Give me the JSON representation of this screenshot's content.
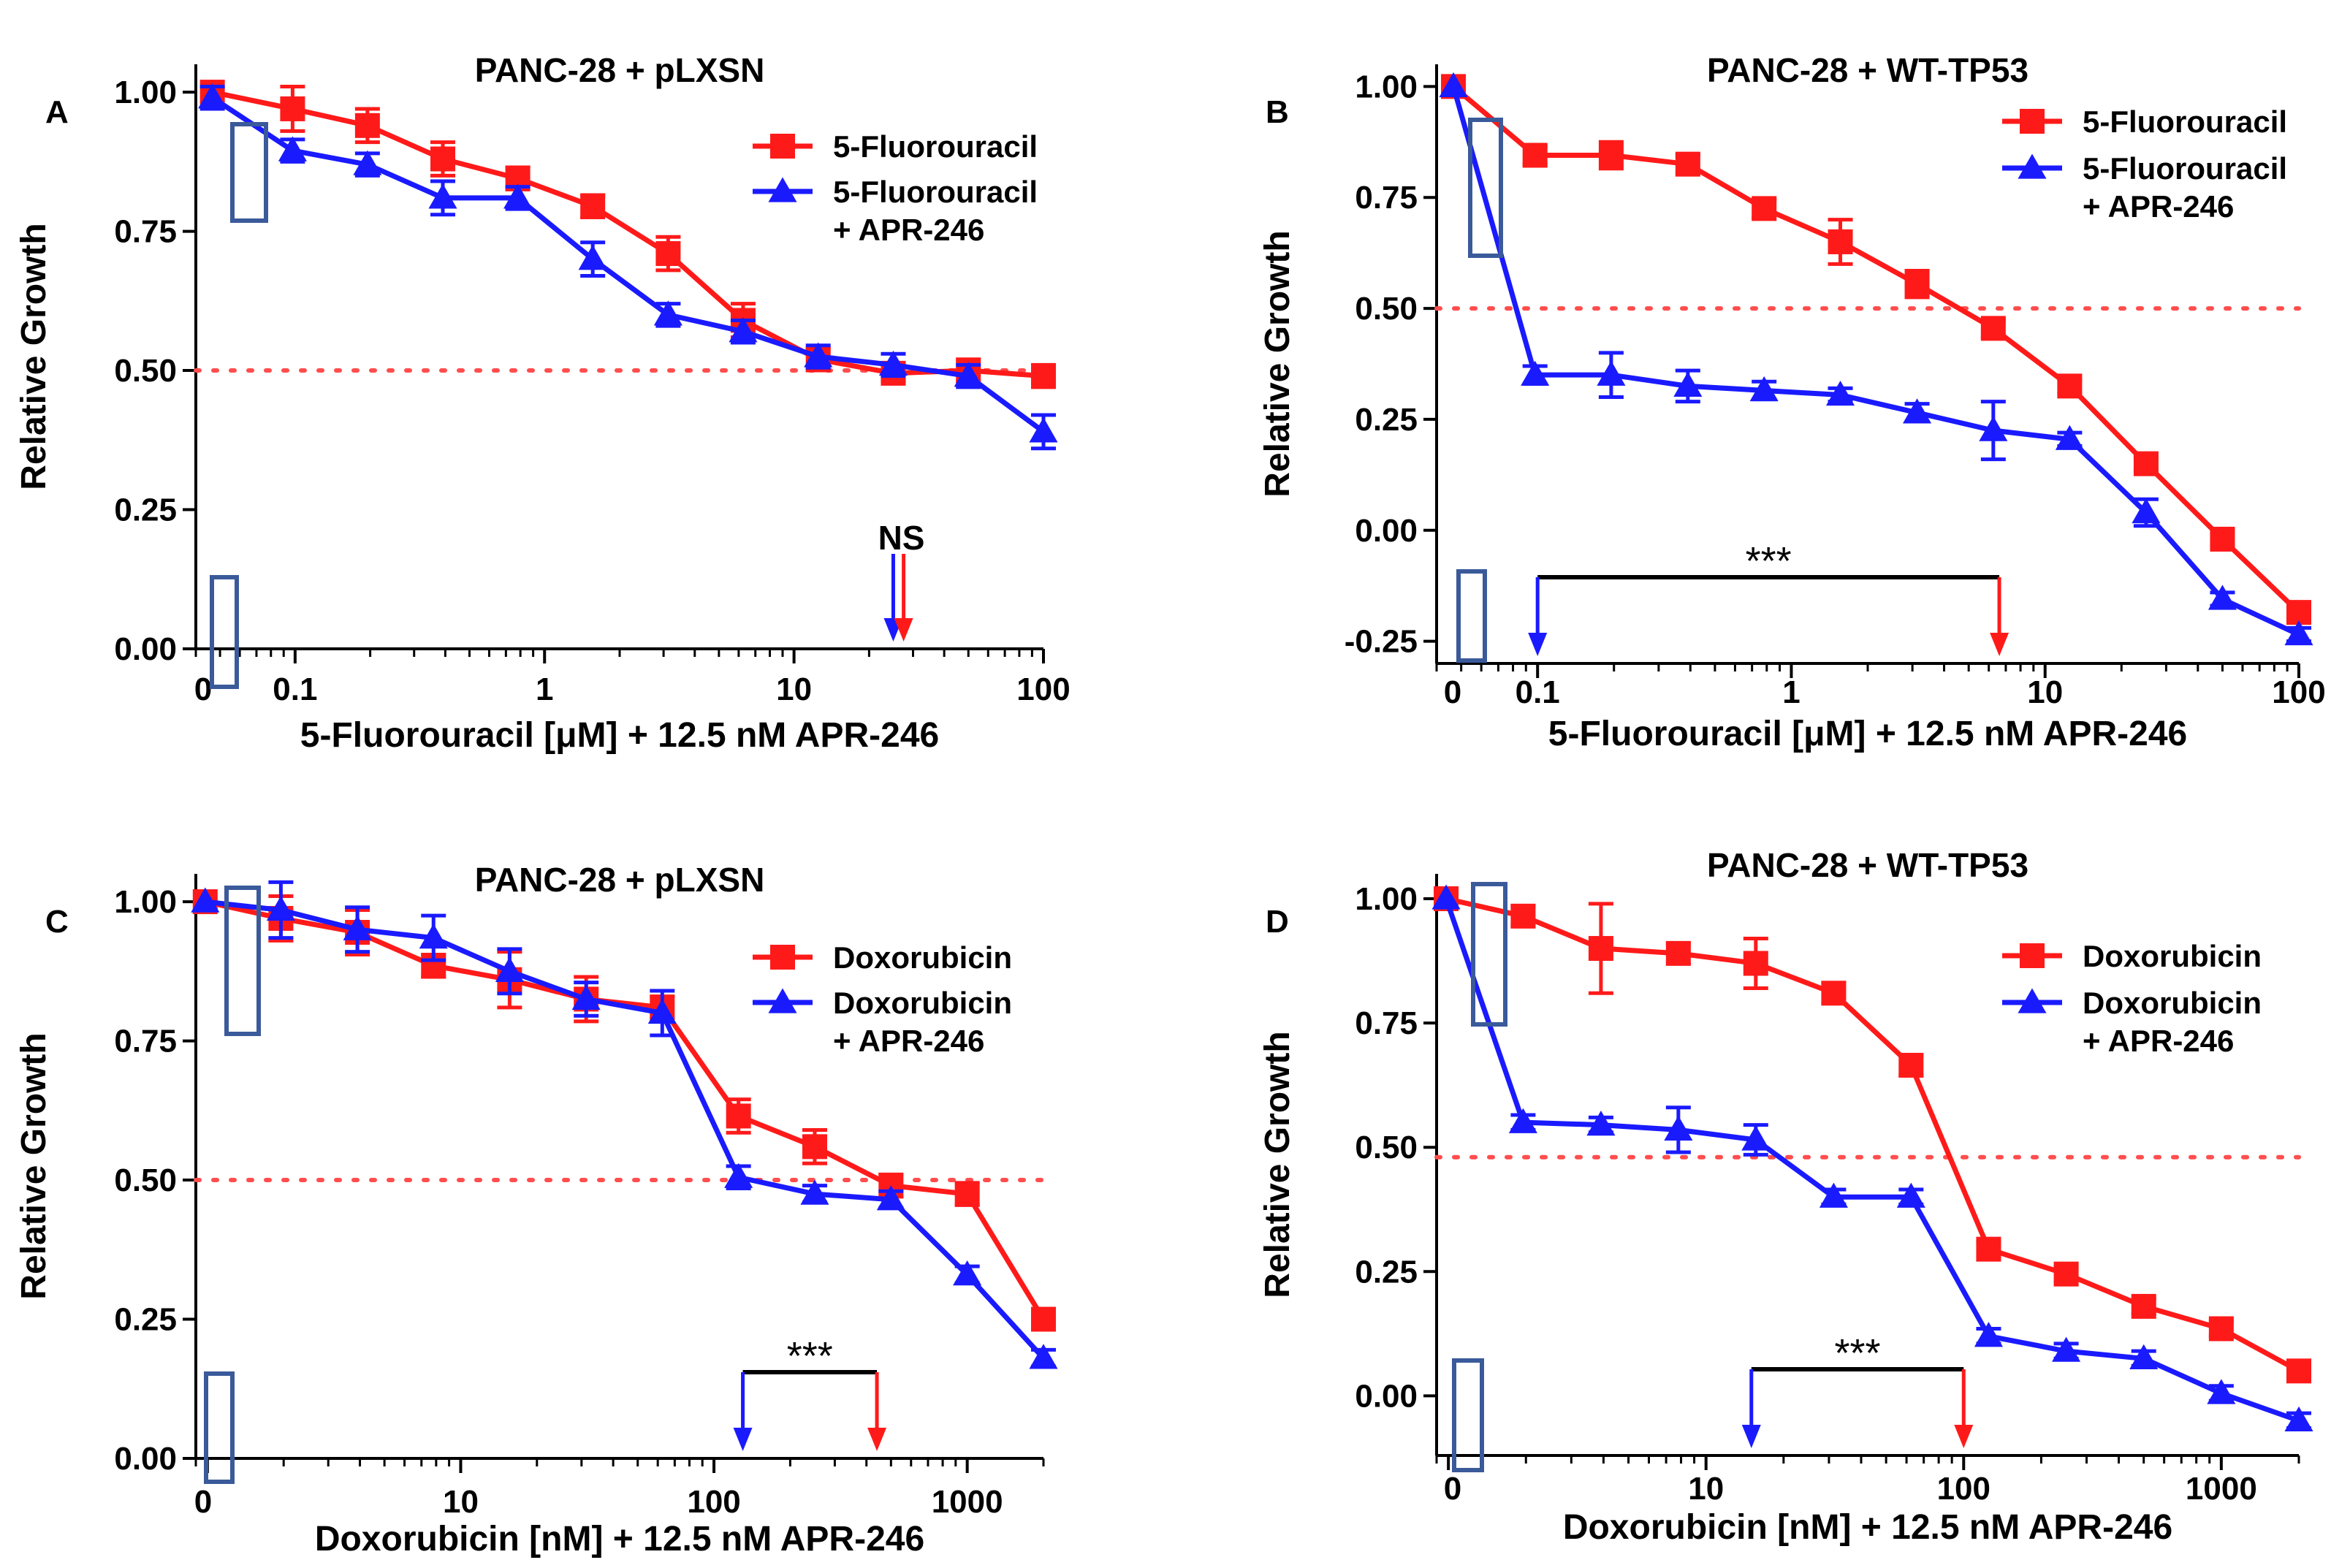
{
  "colors": {
    "red": "#ff1a1a",
    "blue": "#1a1aff",
    "axis": "#000000",
    "box": "#3a5a9a",
    "ref": "#ff4d4d"
  },
  "legend_markers": {
    "square": "square-marker",
    "triangle": "triangle-marker"
  },
  "chart_data": [
    {
      "type": "line",
      "panel": "A",
      "title": "PANC-28 + pLXSN",
      "xlabel": "5-Fluorouracil [μM] + 12.5 nM APR-246",
      "ylabel": "Relative Growth",
      "xscale": "log",
      "xlim": [
        0.04,
        100
      ],
      "ylim": [
        0,
        1.05
      ],
      "xticks": [
        {
          "v": 0.1,
          "label": "0.1"
        },
        {
          "v": 1,
          "label": "1"
        },
        {
          "v": 10,
          "label": "10"
        },
        {
          "v": 100,
          "label": "100"
        }
      ],
      "x_zero_label": "0",
      "yticks": [
        {
          "v": 0,
          "label": "0.00"
        },
        {
          "v": 0.25,
          "label": "0.25"
        },
        {
          "v": 0.5,
          "label": "0.50"
        },
        {
          "v": 0.75,
          "label": "0.75"
        },
        {
          "v": 1,
          "label": "1.00"
        }
      ],
      "reference_line": 0.5,
      "series": [
        {
          "name": "5-Fluorouracil",
          "color": "red",
          "marker": "square",
          "x": [
            0.0466,
            0.0977,
            0.195,
            0.391,
            0.781,
            1.56,
            3.13,
            6.25,
            12.5,
            25,
            50,
            100
          ],
          "y": [
            1.0,
            0.97,
            0.94,
            0.88,
            0.845,
            0.795,
            0.71,
            0.59,
            0.52,
            0.495,
            0.5,
            0.49
          ],
          "err": [
            0,
            0.04,
            0.03,
            0.03,
            0.02,
            0.02,
            0.03,
            0.03,
            0.02,
            0.015,
            0.02,
            0.02
          ]
        },
        {
          "name": "5-Fluorouracil + APR-246",
          "color": "blue",
          "marker": "triangle",
          "x": [
            0.0466,
            0.0977,
            0.195,
            0.391,
            0.781,
            1.56,
            3.13,
            6.25,
            12.5,
            25,
            50,
            100
          ],
          "y": [
            0.99,
            0.895,
            0.87,
            0.81,
            0.81,
            0.7,
            0.6,
            0.57,
            0.525,
            0.51,
            0.49,
            0.39
          ],
          "err": [
            0.02,
            0.02,
            0.02,
            0.03,
            0.02,
            0.03,
            0.02,
            0.02,
            0.02,
            0.02,
            0.02,
            0.03
          ]
        }
      ],
      "legend": [
        {
          "series": 0,
          "lines": [
            "5-Fluorouracil"
          ]
        },
        {
          "series": 1,
          "lines": [
            "5-Fluorouracil",
            "+ APR-246"
          ]
        }
      ],
      "ic50_markers": {
        "blue_x": 25,
        "red_x": 27.5,
        "label": "NS"
      }
    },
    {
      "type": "line",
      "panel": "B",
      "title": "PANC-28 + WT-TP53",
      "xlabel": "5-Fluorouracil [μM] + 12.5 nM APR-246",
      "ylabel": "Relative Growth",
      "xscale": "log",
      "xlim": [
        0.04,
        100
      ],
      "ylim": [
        -0.3,
        1.05
      ],
      "xticks": [
        {
          "v": 0.1,
          "label": "0.1"
        },
        {
          "v": 1,
          "label": "1"
        },
        {
          "v": 10,
          "label": "10"
        },
        {
          "v": 100,
          "label": "100"
        }
      ],
      "x_zero_label": "0",
      "yticks": [
        {
          "v": -0.25,
          "label": "-0.25"
        },
        {
          "v": 0,
          "label": "0.00"
        },
        {
          "v": 0.25,
          "label": "0.25"
        },
        {
          "v": 0.5,
          "label": "0.50"
        },
        {
          "v": 0.75,
          "label": "0.75"
        },
        {
          "v": 1,
          "label": "1.00"
        }
      ],
      "reference_line": 0.5,
      "series": [
        {
          "name": "5-Fluorouracil",
          "color": "red",
          "marker": "square",
          "x": [
            0.0466,
            0.0977,
            0.195,
            0.391,
            0.781,
            1.56,
            3.13,
            6.25,
            12.5,
            25,
            50,
            100
          ],
          "y": [
            1.0,
            0.845,
            0.845,
            0.825,
            0.725,
            0.65,
            0.555,
            0.455,
            0.325,
            0.15,
            -0.02,
            -0.185
          ],
          "err": [
            0,
            0.02,
            0.03,
            0.02,
            0.02,
            0.05,
            0.03,
            0.02,
            0.015,
            0.015,
            0.015,
            0.015
          ]
        },
        {
          "name": "5-Fluorouracil + APR-246",
          "color": "blue",
          "marker": "triangle",
          "x": [
            0.0466,
            0.0977,
            0.195,
            0.391,
            0.781,
            1.56,
            3.13,
            6.25,
            12.5,
            25,
            50,
            100
          ],
          "y": [
            1.0,
            0.35,
            0.35,
            0.325,
            0.315,
            0.305,
            0.265,
            0.225,
            0.205,
            0.04,
            -0.155,
            -0.235
          ],
          "err": [
            0,
            0.02,
            0.05,
            0.035,
            0.02,
            0.015,
            0.02,
            0.065,
            0.015,
            0.03,
            0.015,
            0.015
          ]
        }
      ],
      "legend": [
        {
          "series": 0,
          "lines": [
            "5-Fluorouracil"
          ]
        },
        {
          "series": 1,
          "lines": [
            "5-Fluorouracil",
            "+ APR-246"
          ]
        }
      ],
      "ic50_markers": {
        "blue_x": 0.1,
        "red_x": 6.6,
        "label": "***"
      }
    },
    {
      "type": "line",
      "panel": "C",
      "title": "PANC-28 + pLXSN",
      "xlabel": "Doxorubicin [nM] + 12.5 nM APR-246",
      "ylabel": "Relative Growth",
      "xscale": "log",
      "xlim": [
        0.9,
        2000
      ],
      "ylim": [
        0,
        1.05
      ],
      "xticks": [
        {
          "v": 10,
          "label": "10"
        },
        {
          "v": 100,
          "label": "100"
        },
        {
          "v": 1000,
          "label": "1000"
        }
      ],
      "x_zero_label": "0",
      "yticks": [
        {
          "v": 0,
          "label": "0.00"
        },
        {
          "v": 0.25,
          "label": "0.25"
        },
        {
          "v": 0.5,
          "label": "0.50"
        },
        {
          "v": 0.75,
          "label": "0.75"
        },
        {
          "v": 1,
          "label": "1.00"
        }
      ],
      "reference_line": 0.5,
      "series": [
        {
          "name": "Doxorubicin",
          "color": "red",
          "marker": "square",
          "x": [
            0.98,
            1.95,
            3.91,
            7.81,
            15.6,
            31.3,
            62.5,
            125,
            250,
            500,
            1000,
            2000
          ],
          "y": [
            1.0,
            0.97,
            0.945,
            0.885,
            0.86,
            0.825,
            0.81,
            0.615,
            0.56,
            0.49,
            0.475,
            0.25
          ],
          "err": [
            0,
            0.04,
            0.04,
            0.02,
            0.05,
            0.04,
            0.02,
            0.03,
            0.03,
            0.02,
            0.02,
            0.015
          ]
        },
        {
          "name": "Doxorubicin + APR-246",
          "color": "blue",
          "marker": "triangle",
          "x": [
            0.98,
            1.95,
            3.91,
            7.81,
            15.6,
            31.3,
            62.5,
            125,
            250,
            500,
            1000,
            2000
          ],
          "y": [
            1.0,
            0.985,
            0.95,
            0.935,
            0.875,
            0.825,
            0.8,
            0.505,
            0.475,
            0.465,
            0.33,
            0.18
          ],
          "err": [
            0,
            0.05,
            0.04,
            0.04,
            0.04,
            0.03,
            0.04,
            0.02,
            0.015,
            0.015,
            0.015,
            0.015
          ]
        }
      ],
      "legend": [
        {
          "series": 0,
          "lines": [
            "Doxorubicin"
          ]
        },
        {
          "series": 1,
          "lines": [
            "Doxorubicin",
            "+ APR-246"
          ]
        }
      ],
      "ic50_markers": {
        "blue_x": 130,
        "red_x": 440,
        "label": "***"
      }
    },
    {
      "type": "line",
      "panel": "D",
      "title": "PANC-28 + WT-TP53",
      "xlabel": "Doxorubicin [nM] + 12.5 nM APR-246",
      "ylabel": "Relative Growth",
      "xscale": "log",
      "xlim": [
        0.9,
        2000
      ],
      "ylim": [
        -0.12,
        1.05
      ],
      "xticks": [
        {
          "v": 10,
          "label": "10"
        },
        {
          "v": 100,
          "label": "100"
        },
        {
          "v": 1000,
          "label": "1000"
        }
      ],
      "x_zero_label": "0",
      "yticks": [
        {
          "v": 0,
          "label": "0.00"
        },
        {
          "v": 0.25,
          "label": "0.25"
        },
        {
          "v": 0.5,
          "label": "0.50"
        },
        {
          "v": 0.75,
          "label": "0.75"
        },
        {
          "v": 1,
          "label": "1.00"
        }
      ],
      "reference_line": 0.48,
      "series": [
        {
          "name": "Doxorubicin",
          "color": "red",
          "marker": "square",
          "x": [
            0.98,
            1.95,
            3.91,
            7.81,
            15.6,
            31.3,
            62.5,
            125,
            250,
            500,
            1000,
            2000
          ],
          "y": [
            1.0,
            0.965,
            0.9,
            0.89,
            0.87,
            0.81,
            0.665,
            0.295,
            0.245,
            0.18,
            0.135,
            0.05
          ],
          "err": [
            0,
            0.02,
            0.09,
            0.02,
            0.05,
            0.02,
            0.02,
            0.015,
            0.015,
            0.015,
            0.015,
            0.015
          ]
        },
        {
          "name": "Doxorubicin + APR-246",
          "color": "blue",
          "marker": "triangle",
          "x": [
            0.98,
            1.95,
            3.91,
            7.81,
            15.6,
            31.3,
            62.5,
            125,
            250,
            500,
            1000,
            2000
          ],
          "y": [
            1.0,
            0.55,
            0.545,
            0.535,
            0.515,
            0.4,
            0.4,
            0.12,
            0.09,
            0.075,
            0.005,
            -0.05
          ],
          "err": [
            0,
            0.015,
            0.015,
            0.045,
            0.03,
            0.015,
            0.015,
            0.015,
            0.015,
            0.015,
            0.015,
            0.015
          ]
        }
      ],
      "legend": [
        {
          "series": 0,
          "lines": [
            "Doxorubicin"
          ]
        },
        {
          "series": 1,
          "lines": [
            "Doxorubicin",
            "+ APR-246"
          ]
        }
      ],
      "ic50_markers": {
        "blue_x": 15,
        "red_x": 100,
        "label": "***"
      }
    }
  ]
}
